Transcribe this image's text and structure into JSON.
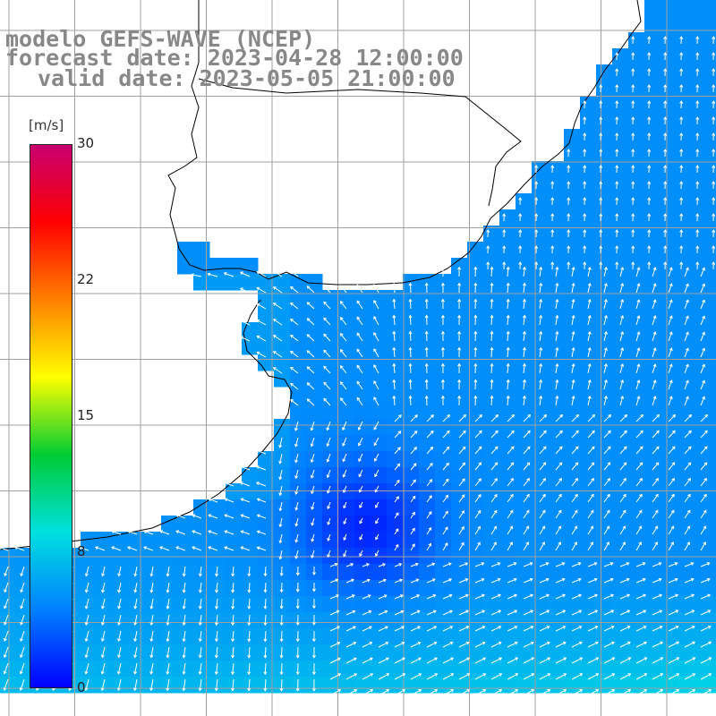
{
  "title": {
    "line1": "modelo GEFS-WAVE (NCEP)",
    "line2": "forecast date: 2023-04-28 12:00:00",
    "line3": "valid date: 2023-05-05 21:00:00"
  },
  "colorbar": {
    "unit": "[m/s]",
    "ticks": [
      "30",
      "22",
      "15",
      "8",
      "0"
    ],
    "range": [
      0,
      30
    ],
    "colors": [
      "#0000ff",
      "#0080ff",
      "#00e0e0",
      "#00cc33",
      "#ffff00",
      "#ff8000",
      "#ff0000",
      "#c80070"
    ]
  },
  "map": {
    "land_color": "#ffffff",
    "grid_color": "#a0a0a0",
    "coast_color": "#000000",
    "vector_color": "#ffffff",
    "field": "wind speed with direction vectors over the South Atlantic shelf (Río de la Plata / southern Brazil / Uruguay)"
  }
}
